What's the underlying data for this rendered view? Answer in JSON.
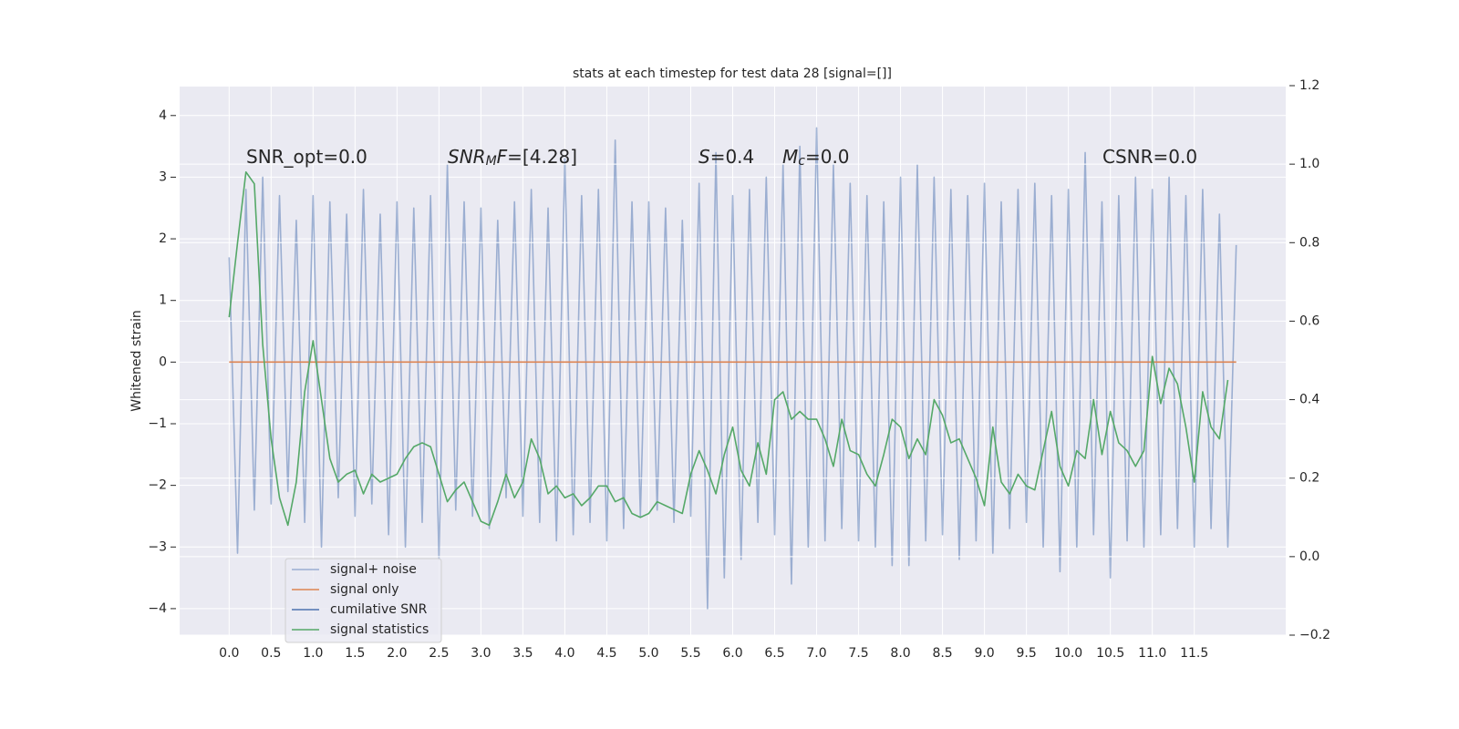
{
  "chart_data": {
    "type": "line",
    "title": "stats at each timestep for test data 28 [signal=[]]",
    "ylabel": "Whitened strain",
    "background": "#eaeaf2",
    "grid": true,
    "xlim": [
      -0.59,
      12.59
    ],
    "ylim": [
      -4.43,
      4.47
    ],
    "y2lim": [
      -0.2,
      1.2
    ],
    "xticks": [
      {
        "value": 0,
        "label": "0.0"
      },
      0.5,
      {
        "value": 1,
        "label": "1.0"
      },
      1.5,
      {
        "value": 2,
        "label": "2.0"
      },
      2.5,
      {
        "value": 3,
        "label": "3.0"
      },
      3.5,
      {
        "value": 4,
        "label": "4.0"
      },
      4.5,
      {
        "value": 5,
        "label": "5.0"
      },
      5.5,
      {
        "value": 6,
        "label": "6.0"
      },
      6.5,
      {
        "value": 7,
        "label": "7.0"
      },
      7.5,
      {
        "value": 8,
        "label": "8.0"
      },
      8.5,
      {
        "value": 9,
        "label": "9.0"
      },
      9.5,
      {
        "value": 10,
        "label": "10.0"
      },
      10.5,
      {
        "value": 11,
        "label": "11.0"
      },
      11.5
    ],
    "yticks": [
      {
        "value": -4,
        "label": "−4"
      },
      {
        "value": -3,
        "label": "−3"
      },
      {
        "value": -2,
        "label": "−2"
      },
      {
        "value": -1,
        "label": "−1"
      },
      0,
      1,
      2,
      3,
      4
    ],
    "y2ticks": [
      {
        "value": -0.2,
        "label": "−0.2"
      },
      {
        "value": 0,
        "label": "0.0"
      },
      0.2,
      0.4,
      0.6,
      0.8,
      {
        "value": 1,
        "label": "1.0"
      },
      1.2
    ],
    "annotations": [
      {
        "parts": [
          {
            "text": "SNR_opt=0.0"
          }
        ]
      },
      {
        "parts": [
          {
            "text": "SNR",
            "style": "italic"
          },
          {
            "text": "M",
            "style": "italic",
            "sub": true
          },
          {
            "text": "F",
            "style": "italic"
          },
          {
            "text": "=[4.28]"
          }
        ]
      },
      {
        "parts": [
          {
            "text": "S",
            "style": "italic"
          },
          {
            "text": "=0.4"
          }
        ]
      },
      {
        "parts": [
          {
            "text": "M",
            "style": "italic"
          },
          {
            "text": "c",
            "style": "italic",
            "sub": true
          },
          {
            "text": "=0.0"
          }
        ]
      },
      {
        "parts": [
          {
            "text": "CSNR=0.0"
          }
        ]
      }
    ],
    "series": [
      {
        "name": "signal+ noise",
        "color": "#4c72b0",
        "alpha": 0.5,
        "x": [
          0,
          0.1,
          0.2,
          0.3,
          0.4,
          0.5,
          0.6,
          0.7,
          0.8,
          0.9,
          1,
          1.1,
          1.2,
          1.3,
          1.4,
          1.5,
          1.6,
          1.7,
          1.8,
          1.9,
          2,
          2.1,
          2.2,
          2.3,
          2.4,
          2.5,
          2.6,
          2.7,
          2.8,
          2.9,
          3,
          3.1,
          3.2,
          3.3,
          3.4,
          3.5,
          3.6,
          3.7,
          3.8,
          3.9,
          4,
          4.1,
          4.2,
          4.3,
          4.4,
          4.5,
          4.6,
          4.7,
          4.8,
          4.9,
          5,
          5.1,
          5.2,
          5.3,
          5.4,
          5.5,
          5.6,
          5.7,
          5.8,
          5.9,
          6,
          6.1,
          6.2,
          6.3,
          6.4,
          6.5,
          6.6,
          6.7,
          6.8,
          6.9,
          7,
          7.1,
          7.2,
          7.3,
          7.4,
          7.5,
          7.6,
          7.7,
          7.8,
          7.9,
          8,
          8.1,
          8.2,
          8.3,
          8.4,
          8.5,
          8.6,
          8.7,
          8.8,
          8.9,
          9,
          9.1,
          9.2,
          9.3,
          9.4,
          9.5,
          9.6,
          9.7,
          9.8,
          9.9,
          10,
          10.1,
          10.2,
          10.3,
          10.4,
          10.5,
          10.6,
          10.7,
          10.8,
          10.9,
          11,
          11.1,
          11.2,
          11.3,
          11.4,
          11.5,
          11.6,
          11.7,
          11.8,
          11.9,
          12
        ],
        "values": [
          1.7,
          -3.1,
          2.8,
          -2.4,
          3.0,
          -2.3,
          2.7,
          -2.1,
          2.3,
          -2.6,
          2.7,
          -3.0,
          2.6,
          -2.2,
          2.4,
          -2.5,
          2.8,
          -2.3,
          2.4,
          -2.8,
          2.6,
          -3.0,
          2.5,
          -2.6,
          2.7,
          -3.2,
          3.2,
          -2.4,
          2.6,
          -2.5,
          2.5,
          -2.7,
          2.3,
          -2.2,
          2.6,
          -2.5,
          2.8,
          -2.6,
          2.5,
          -2.9,
          3.3,
          -2.8,
          2.7,
          -2.6,
          2.8,
          -2.9,
          3.6,
          -2.7,
          2.6,
          -2.5,
          2.6,
          -2.4,
          2.5,
          -2.6,
          2.3,
          -2.5,
          2.9,
          -4.0,
          3.4,
          -3.5,
          2.7,
          -3.2,
          2.8,
          -2.6,
          3.0,
          -2.8,
          3.2,
          -3.6,
          3.5,
          -3.0,
          3.8,
          -2.9,
          3.2,
          -2.7,
          2.9,
          -2.9,
          2.7,
          -3.0,
          2.6,
          -3.3,
          3.0,
          -3.3,
          3.2,
          -2.9,
          3.0,
          -2.8,
          2.8,
          -3.2,
          2.7,
          -2.9,
          2.9,
          -3.1,
          2.6,
          -2.7,
          2.8,
          -2.6,
          2.9,
          -3.0,
          2.7,
          -3.4,
          2.8,
          -3.0,
          3.4,
          -2.8,
          2.6,
          -3.5,
          2.7,
          -2.9,
          3.0,
          -3.0,
          2.8,
          -2.8,
          3.0,
          -2.7,
          2.7,
          -3.0,
          2.8,
          -2.7,
          2.4,
          -3.0,
          1.9
        ]
      },
      {
        "name": "signal only",
        "color": "#dd8452",
        "x": [
          0,
          12
        ],
        "values": [
          0,
          0
        ]
      },
      {
        "name": "cumilative SNR",
        "color": "#4c72b0",
        "axis": "y2",
        "x": [],
        "values": []
      },
      {
        "name": "signal statistics",
        "color": "#55a868",
        "axis": "y2",
        "x": [
          0,
          0.1,
          0.2,
          0.3,
          0.4,
          0.5,
          0.6,
          0.7,
          0.8,
          0.9,
          1,
          1.1,
          1.2,
          1.3,
          1.4,
          1.5,
          1.6,
          1.7,
          1.8,
          1.9,
          2,
          2.1,
          2.2,
          2.3,
          2.4,
          2.5,
          2.6,
          2.7,
          2.8,
          2.9,
          3,
          3.1,
          3.2,
          3.3,
          3.4,
          3.5,
          3.6,
          3.7,
          3.8,
          3.9,
          4,
          4.1,
          4.2,
          4.3,
          4.4,
          4.5,
          4.6,
          4.7,
          4.8,
          4.9,
          5,
          5.1,
          5.2,
          5.3,
          5.4,
          5.5,
          5.6,
          5.7,
          5.8,
          5.9,
          6,
          6.1,
          6.2,
          6.3,
          6.4,
          6.5,
          6.6,
          6.7,
          6.8,
          6.9,
          7,
          7.1,
          7.2,
          7.3,
          7.4,
          7.5,
          7.6,
          7.7,
          7.8,
          7.9,
          8,
          8.1,
          8.2,
          8.3,
          8.4,
          8.5,
          8.6,
          8.7,
          8.8,
          8.9,
          9,
          9.1,
          9.2,
          9.3,
          9.4,
          9.5,
          9.6,
          9.7,
          9.8,
          9.9,
          10,
          10.1,
          10.2,
          10.3,
          10.4,
          10.5,
          10.6,
          10.7,
          10.8,
          10.9,
          11,
          11.1,
          11.2,
          11.3,
          11.4,
          11.5,
          11.6,
          11.7,
          11.8,
          11.9
        ],
        "values": [
          0.61,
          0.8,
          0.98,
          0.95,
          0.54,
          0.3,
          0.15,
          0.08,
          0.19,
          0.42,
          0.55,
          0.4,
          0.25,
          0.19,
          0.21,
          0.22,
          0.16,
          0.21,
          0.19,
          0.2,
          0.21,
          0.25,
          0.28,
          0.29,
          0.28,
          0.21,
          0.14,
          0.17,
          0.19,
          0.14,
          0.09,
          0.08,
          0.14,
          0.21,
          0.15,
          0.19,
          0.3,
          0.25,
          0.16,
          0.18,
          0.15,
          0.16,
          0.13,
          0.15,
          0.18,
          0.18,
          0.14,
          0.15,
          0.11,
          0.1,
          0.11,
          0.14,
          0.13,
          0.12,
          0.11,
          0.21,
          0.27,
          0.22,
          0.16,
          0.26,
          0.33,
          0.22,
          0.18,
          0.29,
          0.21,
          0.4,
          0.42,
          0.35,
          0.37,
          0.35,
          0.35,
          0.3,
          0.23,
          0.35,
          0.27,
          0.26,
          0.21,
          0.18,
          0.26,
          0.35,
          0.33,
          0.25,
          0.3,
          0.26,
          0.4,
          0.36,
          0.29,
          0.3,
          0.25,
          0.2,
          0.13,
          0.33,
          0.19,
          0.16,
          0.21,
          0.18,
          0.17,
          0.27,
          0.37,
          0.23,
          0.18,
          0.27,
          0.25,
          0.4,
          0.26,
          0.37,
          0.29,
          0.27,
          0.23,
          0.27,
          0.51,
          0.39,
          0.48,
          0.44,
          0.33,
          0.19,
          0.42,
          0.33,
          0.3,
          0.45
        ]
      }
    ]
  }
}
